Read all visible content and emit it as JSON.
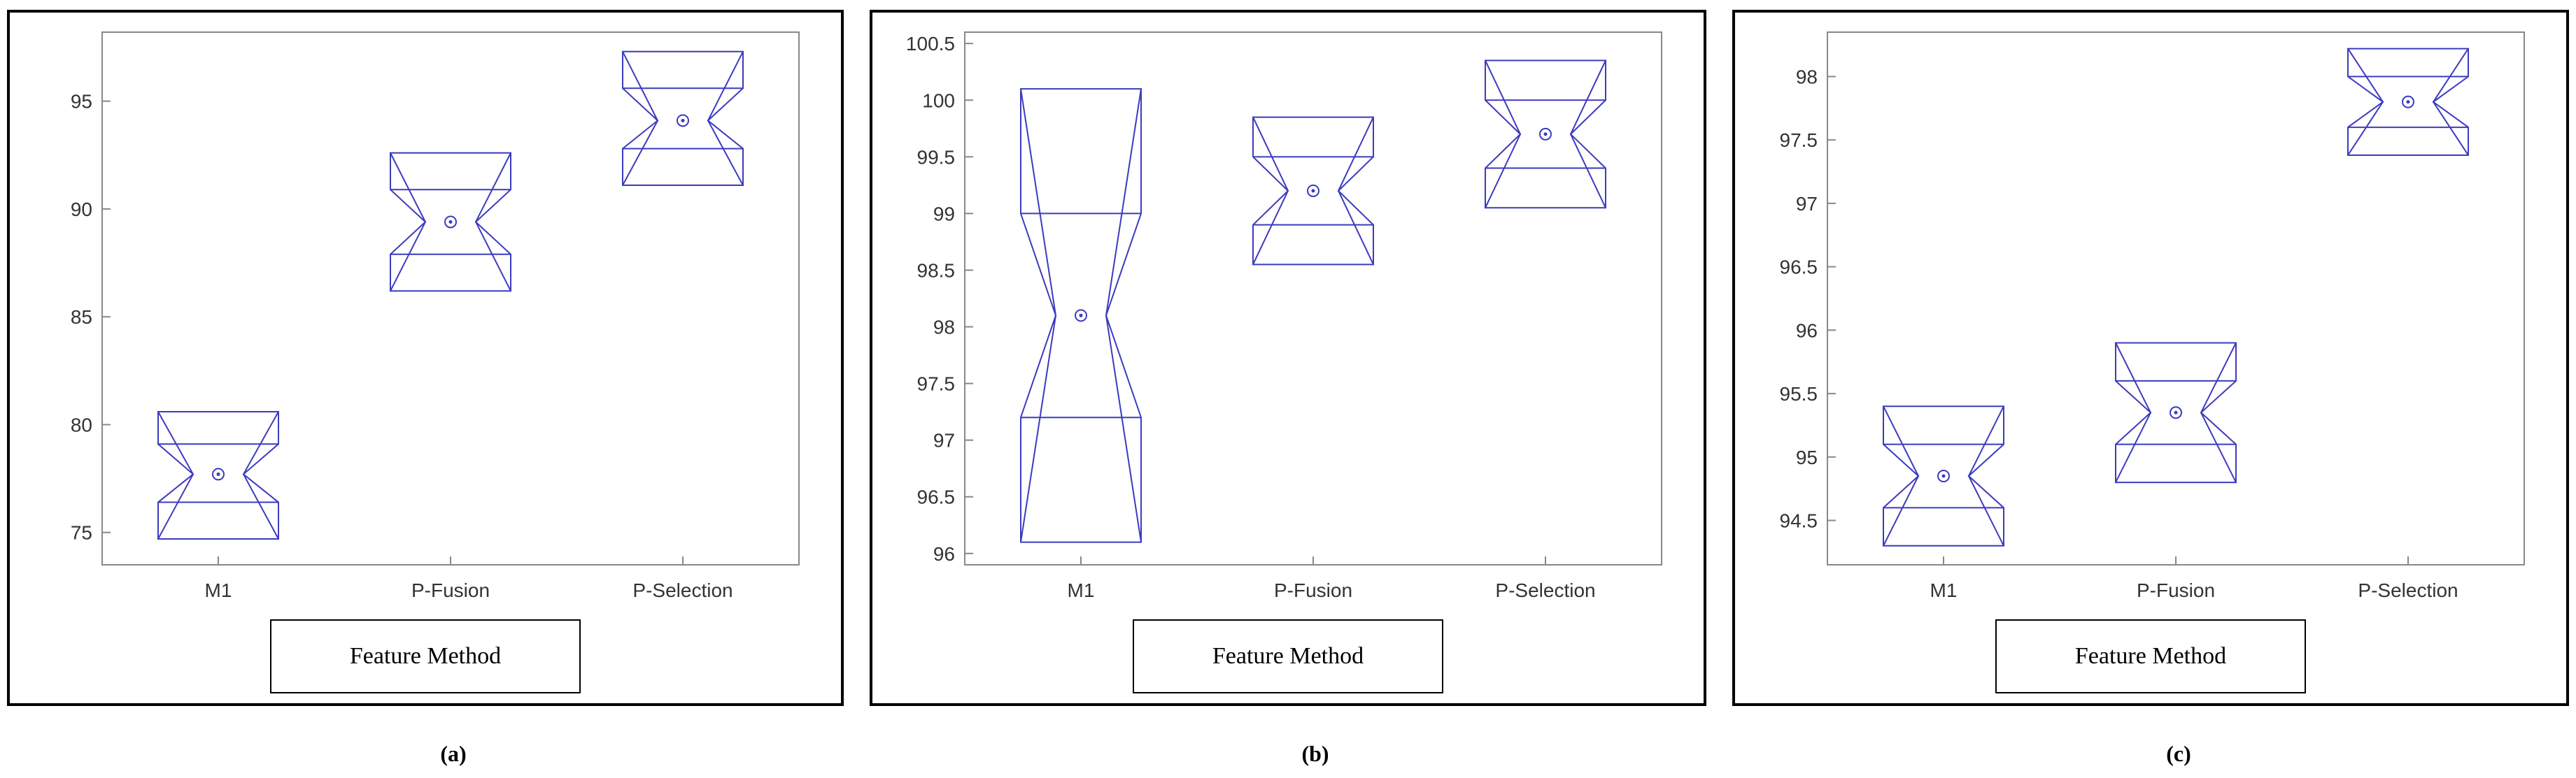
{
  "panels": [
    {
      "caption": "(a)",
      "xlabel": "Feature Method",
      "chart_data": {
        "type": "box",
        "categories": [
          "M1",
          "P-Fusion",
          "P-Selection"
        ],
        "ylim": [
          73.5,
          98.2
        ],
        "yticks": [
          75,
          80,
          85,
          90,
          95
        ],
        "ytick_labels": [
          "75",
          "80",
          "85",
          "90",
          "95"
        ],
        "boxes": [
          {
            "name": "M1",
            "median": 77.7,
            "q1": 76.4,
            "q3": 79.1,
            "notch_low": 76.4,
            "notch_high": 79.1,
            "min": 74.7,
            "max": 80.6
          },
          {
            "name": "P-Fusion",
            "median": 89.4,
            "q1": 87.9,
            "q3": 90.9,
            "notch_low": 87.9,
            "notch_high": 90.9,
            "min": 86.2,
            "max": 92.6
          },
          {
            "name": "P-Selection",
            "median": 94.1,
            "q1": 92.8,
            "q3": 95.6,
            "notch_low": 92.8,
            "notch_high": 95.6,
            "min": 91.1,
            "max": 97.3
          }
        ],
        "grid": false
      }
    },
    {
      "caption": "(b)",
      "xlabel": "Feature Method",
      "chart_data": {
        "type": "box",
        "categories": [
          "M1",
          "P-Fusion",
          "P-Selection"
        ],
        "ylim": [
          95.9,
          100.6
        ],
        "yticks": [
          96,
          96.5,
          97,
          97.5,
          98,
          98.5,
          99,
          99.5,
          100,
          100.5
        ],
        "ytick_labels": [
          "96",
          "96.5",
          "97",
          "97.5",
          "98",
          "98.5",
          "99",
          "99.5",
          "100",
          "100.5"
        ],
        "boxes": [
          {
            "name": "M1",
            "median": 98.1,
            "q1": 97.2,
            "q3": 99.0,
            "notch_low": 97.2,
            "notch_high": 99.0,
            "min": 96.1,
            "max": 100.1
          },
          {
            "name": "P-Fusion",
            "median": 99.2,
            "q1": 98.9,
            "q3": 99.5,
            "notch_low": 98.9,
            "notch_high": 99.5,
            "min": 98.55,
            "max": 99.85
          },
          {
            "name": "P-Selection",
            "median": 99.7,
            "q1": 99.4,
            "q3": 100.0,
            "notch_low": 99.4,
            "notch_high": 100.0,
            "min": 99.05,
            "max": 100.35
          }
        ],
        "grid": false
      }
    },
    {
      "caption": "(c)",
      "xlabel": "Feature Method",
      "chart_data": {
        "type": "box",
        "categories": [
          "M1",
          "P-Fusion",
          "P-Selection"
        ],
        "ylim": [
          94.15,
          98.35
        ],
        "yticks": [
          94.5,
          95,
          95.5,
          96,
          96.5,
          97,
          97.5,
          98
        ],
        "ytick_labels": [
          "94.5",
          "95",
          "95.5",
          "96",
          "96.5",
          "97",
          "97.5",
          "98"
        ],
        "boxes": [
          {
            "name": "M1",
            "median": 94.85,
            "q1": 94.6,
            "q3": 95.1,
            "notch_low": 94.6,
            "notch_high": 95.1,
            "min": 94.3,
            "max": 95.4
          },
          {
            "name": "P-Fusion",
            "median": 95.35,
            "q1": 95.1,
            "q3": 95.6,
            "notch_low": 95.1,
            "notch_high": 95.6,
            "min": 94.8,
            "max": 95.9
          },
          {
            "name": "P-Selection",
            "median": 97.8,
            "q1": 97.6,
            "q3": 98.0,
            "notch_low": 97.6,
            "notch_high": 98.0,
            "min": 97.38,
            "max": 98.22
          }
        ],
        "grid": false
      }
    }
  ],
  "colors": {
    "box": "#3b3bbf",
    "axis": "#888888",
    "text": "#333333"
  }
}
